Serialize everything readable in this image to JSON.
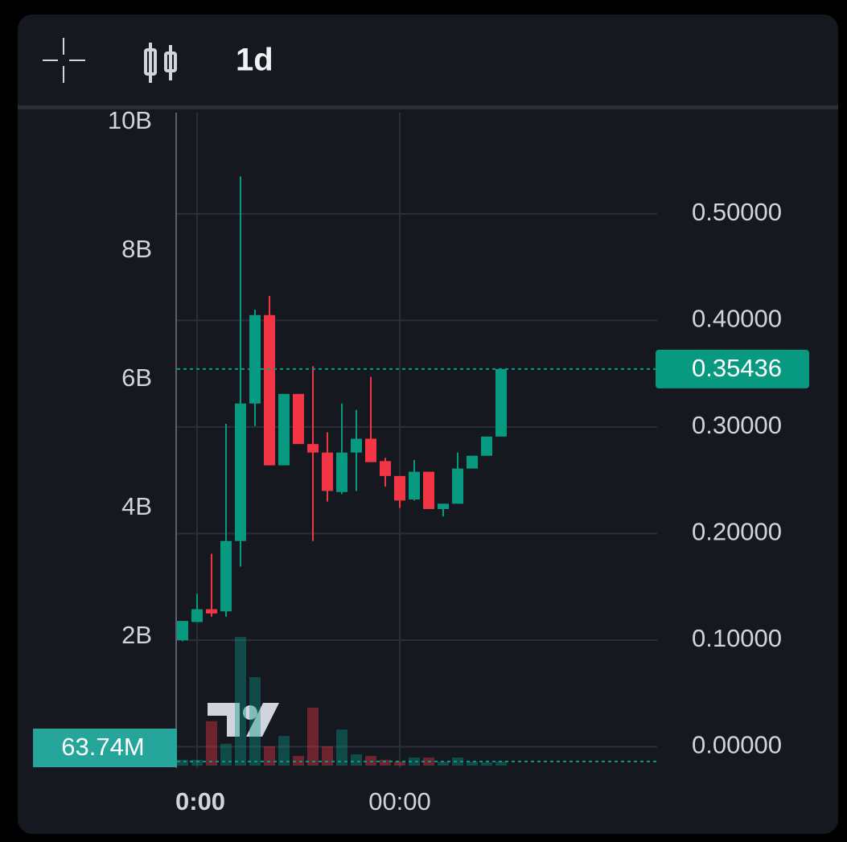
{
  "toolbar": {
    "interval": "1d"
  },
  "chart_data": {
    "type": "candlestick",
    "categories": [
      null,
      "0:00",
      null,
      null,
      null,
      null,
      null,
      null,
      null,
      null,
      null,
      null,
      null,
      null,
      null,
      "00:00",
      null,
      null,
      null,
      null,
      null,
      null,
      null
    ],
    "open": [
      0.1,
      0.117,
      0.129,
      0.127,
      0.193,
      0.322,
      0.405,
      0.264,
      0.331,
      0.284,
      0.276,
      0.239,
      0.276,
      0.289,
      0.268,
      0.254,
      0.232,
      0.258,
      0.223,
      0.228,
      0.261,
      0.273,
      0.291
    ],
    "high": [
      0.118,
      0.1435,
      0.181,
      0.303,
      0.535,
      0.41,
      0.423,
      0.331,
      0.331,
      0.357,
      0.295,
      0.322,
      0.316,
      0.347,
      0.271,
      0.254,
      0.269,
      0.258,
      0.228,
      0.276,
      0.273,
      0.291,
      0.354
    ],
    "low": [
      0.099,
      0.117,
      0.122,
      0.122,
      0.169,
      0.301,
      0.264,
      0.264,
      0.284,
      0.193,
      0.23,
      0.237,
      0.24,
      0.267,
      0.244,
      0.224,
      0.231,
      0.223,
      0.216,
      0.228,
      0.261,
      0.273,
      0.291
    ],
    "close": [
      0.118,
      0.129,
      0.125,
      0.193,
      0.322,
      0.405,
      0.264,
      0.331,
      0.284,
      0.276,
      0.24,
      0.276,
      0.289,
      0.267,
      0.254,
      0.231,
      0.258,
      0.223,
      0.228,
      0.261,
      0.273,
      0.291,
      0.35436
    ],
    "up_color": "#089981",
    "down_color": "#f23645",
    "volume": {
      "axis": "y2",
      "values": [
        90000000,
        90000000,
        690000000,
        340000000,
        2000000000,
        1375000000,
        300000000,
        460000000,
        150000000,
        900000000,
        300000000,
        560000000,
        175000000,
        150000000,
        90000000,
        60000000,
        125000000,
        125000000,
        60000000,
        125000000,
        60000000,
        50000000,
        63740000
      ],
      "value_labels": [
        null,
        null,
        null,
        null,
        null,
        null,
        null,
        null,
        null,
        null,
        null,
        null,
        null,
        null,
        null,
        null,
        null,
        null,
        null,
        null,
        null,
        null,
        "63.74M"
      ]
    },
    "ylim": [
      -0.02,
      0.595
    ],
    "yticks": [
      {
        "value": 0,
        "label": "0.00000"
      },
      {
        "value": 0.1,
        "label": "0.10000"
      },
      {
        "value": 0.2,
        "label": "0.20000"
      },
      {
        "value": 0.3,
        "label": "0.30000"
      },
      {
        "value": 0.4,
        "label": "0.40000"
      },
      {
        "value": 0.5,
        "label": "0.50000"
      }
    ],
    "y2lim": [
      0,
      10150000000
    ],
    "y2ticks": [
      {
        "value": 2000000000,
        "label": "2B"
      },
      {
        "value": 4000000000,
        "label": "4B"
      },
      {
        "value": 6000000000,
        "label": "6B"
      },
      {
        "value": 8000000000,
        "label": "8B"
      },
      {
        "value": 10000000000,
        "label": "10B"
      }
    ],
    "grid": true
  }
}
